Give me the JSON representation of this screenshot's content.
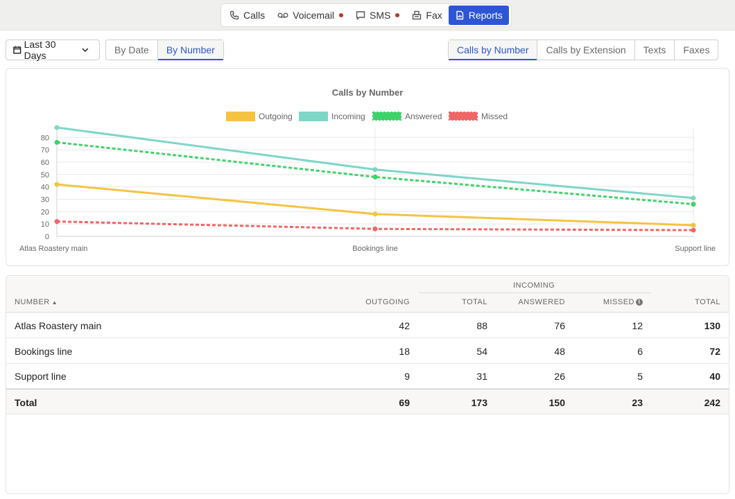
{
  "nav": {
    "items": [
      {
        "label": "Calls",
        "icon": "phone-icon",
        "dot": false,
        "active": false
      },
      {
        "label": "Voicemail",
        "icon": "voicemail-icon",
        "dot": true,
        "active": false
      },
      {
        "label": "SMS",
        "icon": "message-icon",
        "dot": true,
        "active": false
      },
      {
        "label": "Fax",
        "icon": "fax-icon",
        "dot": false,
        "active": false
      },
      {
        "label": "Reports",
        "icon": "report-icon",
        "dot": false,
        "active": true
      }
    ]
  },
  "controls": {
    "date_range": "Last 30 Days",
    "view_options": [
      "By Date",
      "By Number"
    ],
    "view_selected": "By Number",
    "type_options": [
      "Calls by Number",
      "Calls by Extension",
      "Texts",
      "Faxes"
    ],
    "type_selected": "Calls by Number"
  },
  "colors": {
    "accent": "#2d55d6",
    "outgoing": "#f5c342",
    "incoming": "#7dd6c6",
    "answered": "#3ed36a",
    "missed": "#f06565",
    "status_dot": "#b8372b"
  },
  "chart_data": {
    "type": "line",
    "title": "Calls by Number",
    "categories": [
      "Atlas Roastery main",
      "Bookings line",
      "Support line"
    ],
    "series": [
      {
        "name": "Outgoing",
        "values": [
          42,
          18,
          9
        ],
        "style": "solid"
      },
      {
        "name": "Incoming",
        "values": [
          88,
          54,
          31
        ],
        "style": "solid"
      },
      {
        "name": "Answered",
        "values": [
          76,
          48,
          26
        ],
        "style": "dashed"
      },
      {
        "name": "Missed",
        "values": [
          12,
          6,
          5
        ],
        "style": "dashed"
      }
    ],
    "yticks": [
      0,
      10,
      20,
      30,
      40,
      50,
      60,
      70,
      80
    ],
    "ylim": [
      0,
      88
    ],
    "legend": "top",
    "grid": true
  },
  "table": {
    "group_header": "INCOMING",
    "columns": [
      "NUMBER",
      "OUTGOING",
      "TOTAL",
      "ANSWERED",
      "MISSED",
      "TOTAL"
    ],
    "rows": [
      {
        "number": "Atlas Roastery main",
        "outgoing": "42",
        "incoming_total": "88",
        "answered": "76",
        "missed": "12",
        "total": "130"
      },
      {
        "number": "Bookings line",
        "outgoing": "18",
        "incoming_total": "54",
        "answered": "48",
        "missed": "6",
        "total": "72"
      },
      {
        "number": "Support line",
        "outgoing": "9",
        "incoming_total": "31",
        "answered": "26",
        "missed": "5",
        "total": "40"
      }
    ],
    "totals": {
      "label": "Total",
      "outgoing": "69",
      "incoming_total": "173",
      "answered": "150",
      "missed": "23",
      "total": "242"
    }
  }
}
